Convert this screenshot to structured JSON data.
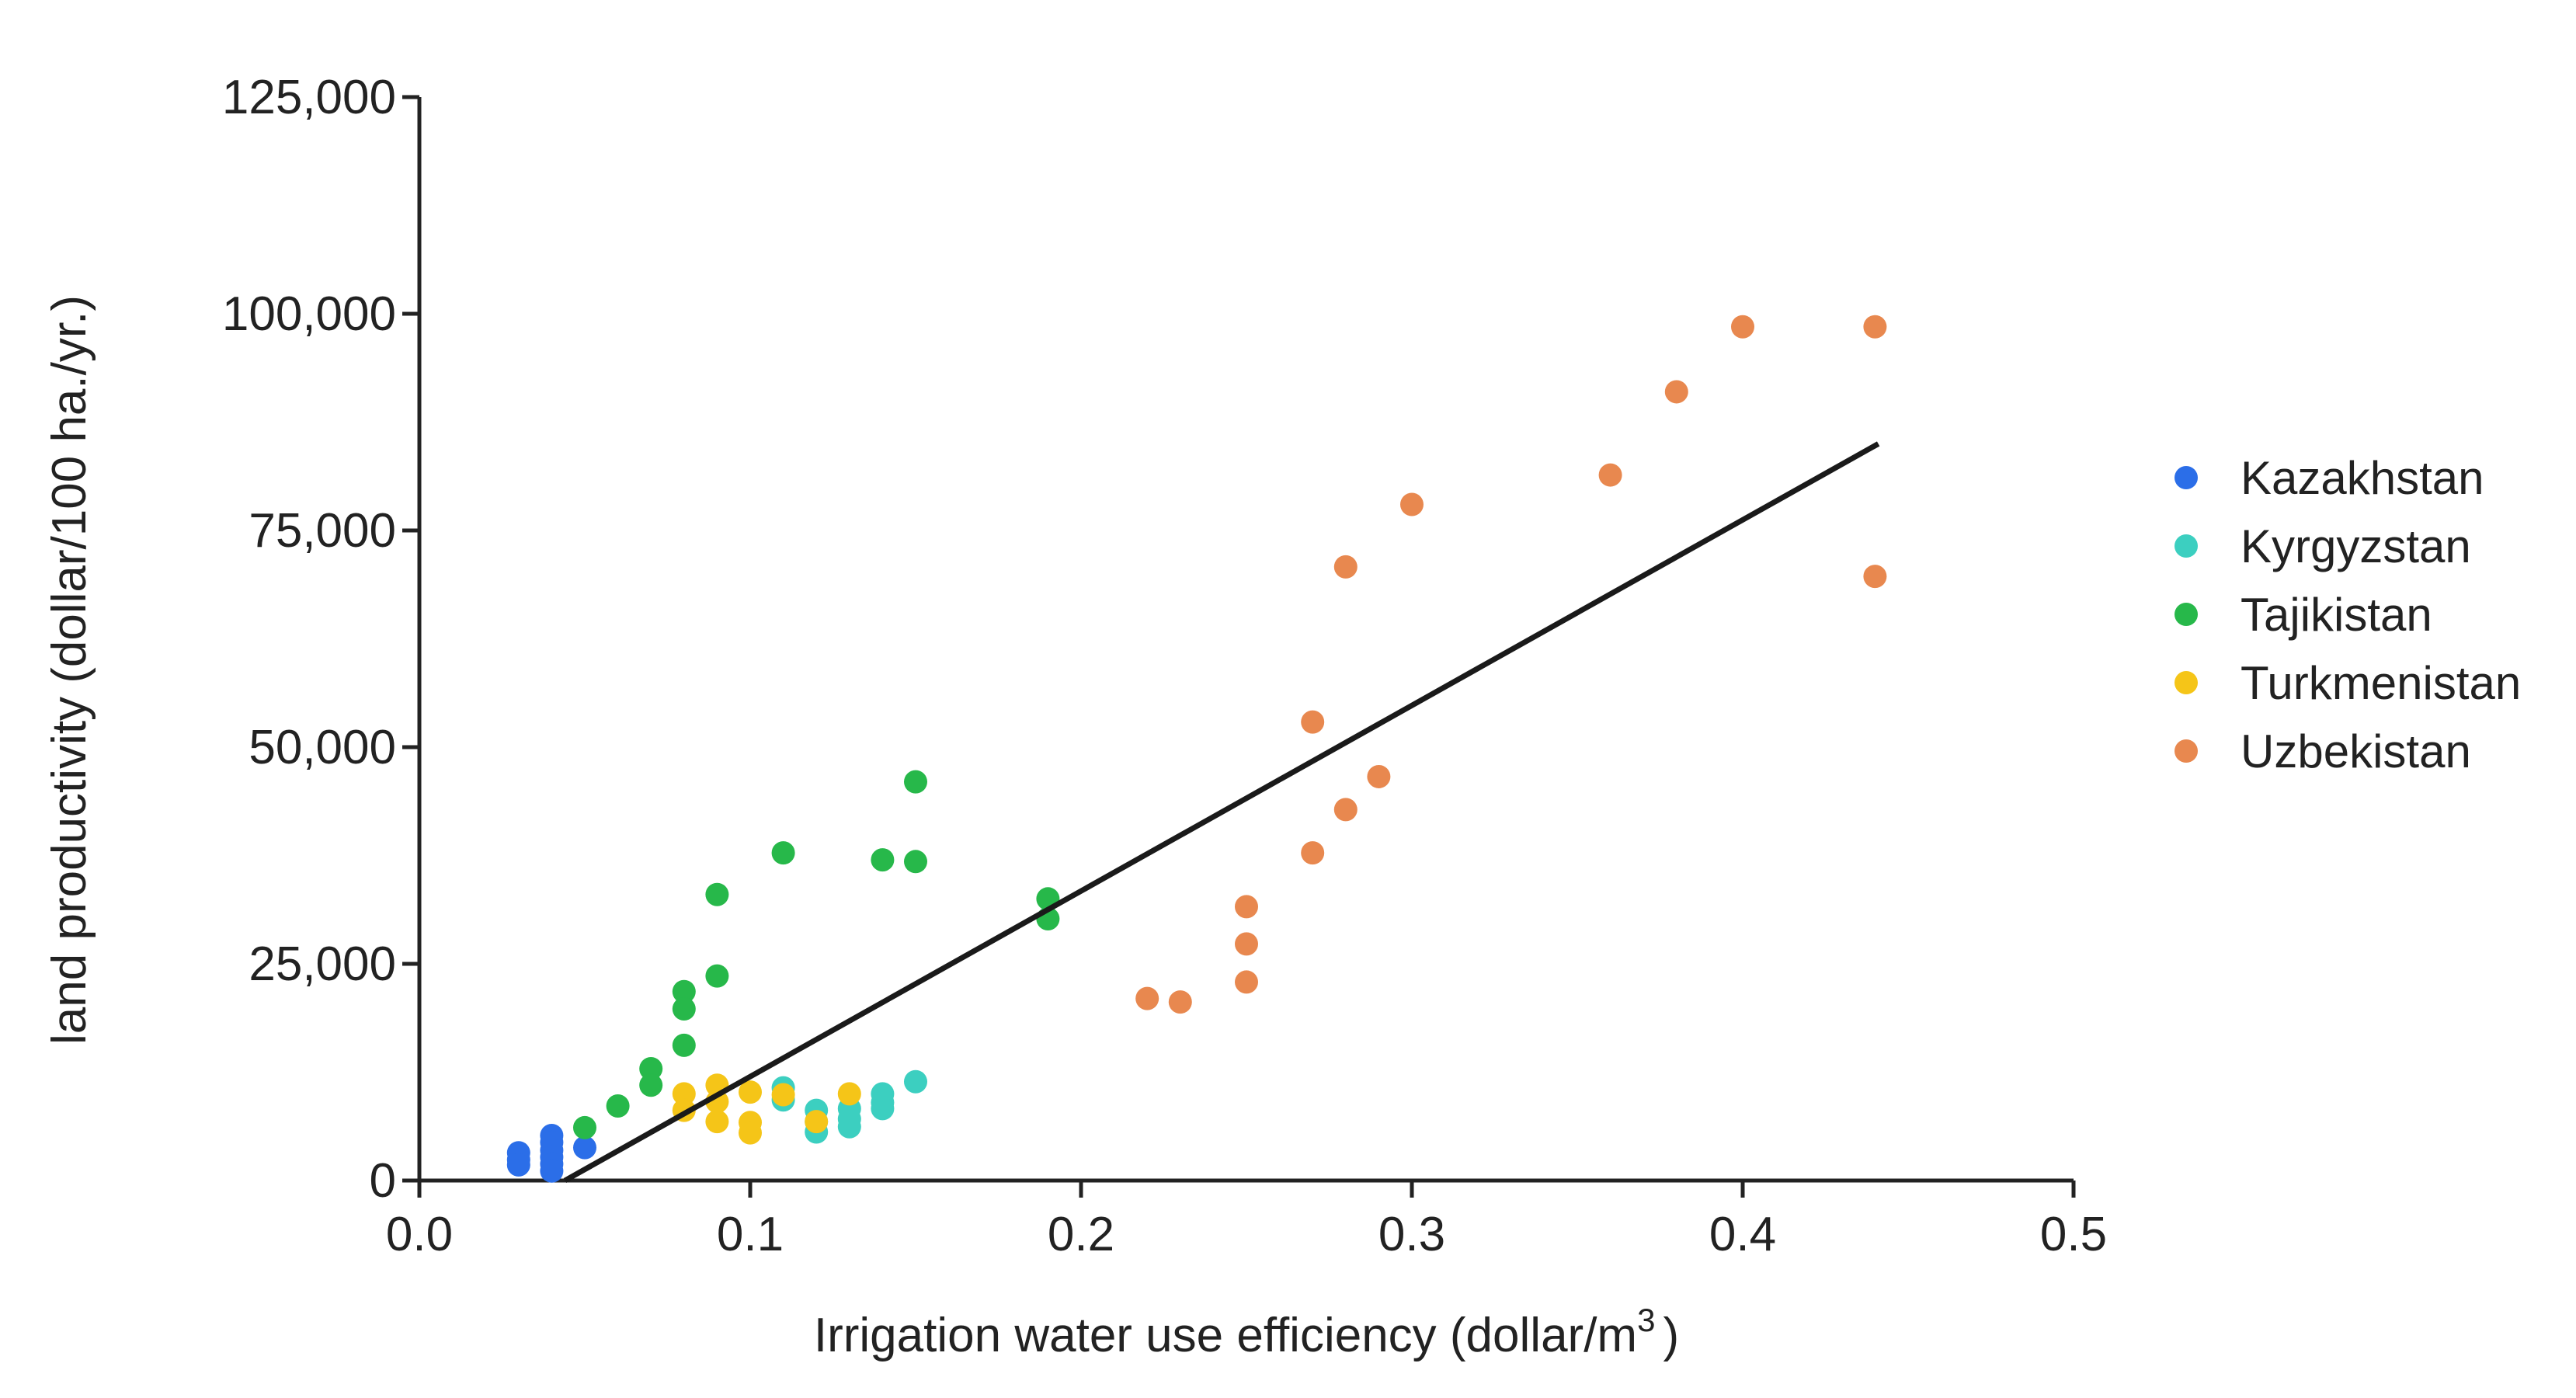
{
  "chart_data": {
    "type": "scatter",
    "title": "",
    "xlabel": "Irrigation water use efficiency (dollar/m",
    "xlabel_sup": "3",
    "xlabel_close": ")",
    "ylabel": "land productivity (dollar/100 ha./yr.)",
    "xlim": [
      0.0,
      0.5
    ],
    "ylim": [
      0,
      125000
    ],
    "grid": false,
    "legend_position": "right",
    "x_ticks": [
      {
        "value": 0.0,
        "label": "0.0"
      },
      {
        "value": 0.1,
        "label": "0.1"
      },
      {
        "value": 0.2,
        "label": "0.2"
      },
      {
        "value": 0.3,
        "label": "0.3"
      },
      {
        "value": 0.4,
        "label": "0.4"
      },
      {
        "value": 0.5,
        "label": "0.5"
      }
    ],
    "y_ticks": [
      {
        "value": 0,
        "label": "0"
      },
      {
        "value": 25000,
        "label": "25,000"
      },
      {
        "value": 50000,
        "label": "50,000"
      },
      {
        "value": 75000,
        "label": "75,000"
      },
      {
        "value": 100000,
        "label": "100,000"
      },
      {
        "value": 125000,
        "label": "125,000"
      }
    ],
    "trendline": {
      "x": [
        0.044,
        0.441
      ],
      "y": [
        0,
        85000
      ],
      "color": "#1a1a1a"
    },
    "series": [
      {
        "name": "Kazakhstan",
        "color": "#2b6ee8",
        "points": [
          [
            0.03,
            3200
          ],
          [
            0.03,
            2400
          ],
          [
            0.03,
            1800
          ],
          [
            0.04,
            5200
          ],
          [
            0.04,
            4400
          ],
          [
            0.04,
            3500
          ],
          [
            0.04,
            2700
          ],
          [
            0.04,
            1900
          ],
          [
            0.04,
            1100
          ],
          [
            0.05,
            3800
          ]
        ]
      },
      {
        "name": "Kyrgyzstan",
        "color": "#3ccfc0",
        "points": [
          [
            0.11,
            10700
          ],
          [
            0.11,
            9300
          ],
          [
            0.12,
            8100
          ],
          [
            0.12,
            6800
          ],
          [
            0.12,
            5600
          ],
          [
            0.13,
            8300
          ],
          [
            0.13,
            7100
          ],
          [
            0.13,
            6200
          ],
          [
            0.14,
            10000
          ],
          [
            0.14,
            9000
          ],
          [
            0.14,
            8300
          ],
          [
            0.15,
            11400
          ]
        ]
      },
      {
        "name": "Tajikistan",
        "color": "#27b84a",
        "points": [
          [
            0.05,
            6100
          ],
          [
            0.06,
            8600
          ],
          [
            0.07,
            12900
          ],
          [
            0.07,
            11000
          ],
          [
            0.08,
            21800
          ],
          [
            0.08,
            19800
          ],
          [
            0.08,
            15600
          ],
          [
            0.09,
            33000
          ],
          [
            0.09,
            23600
          ],
          [
            0.11,
            37800
          ],
          [
            0.14,
            37000
          ],
          [
            0.15,
            46000
          ],
          [
            0.15,
            36800
          ],
          [
            0.19,
            32500
          ],
          [
            0.19,
            30200
          ]
        ]
      },
      {
        "name": "Turkmenistan",
        "color": "#f5c518",
        "points": [
          [
            0.08,
            10000
          ],
          [
            0.08,
            8100
          ],
          [
            0.09,
            11000
          ],
          [
            0.09,
            9100
          ],
          [
            0.09,
            6800
          ],
          [
            0.1,
            10200
          ],
          [
            0.1,
            6700
          ],
          [
            0.1,
            5500
          ],
          [
            0.11,
            9900
          ],
          [
            0.12,
            6800
          ],
          [
            0.13,
            10000
          ]
        ]
      },
      {
        "name": "Uzbekistan",
        "color": "#e8884f",
        "points": [
          [
            0.22,
            21000
          ],
          [
            0.23,
            20600
          ],
          [
            0.25,
            31600
          ],
          [
            0.25,
            27300
          ],
          [
            0.25,
            22900
          ],
          [
            0.27,
            52900
          ],
          [
            0.27,
            37800
          ],
          [
            0.28,
            70800
          ],
          [
            0.28,
            42800
          ],
          [
            0.29,
            46600
          ],
          [
            0.3,
            78000
          ],
          [
            0.36,
            81400
          ],
          [
            0.38,
            91000
          ],
          [
            0.4,
            98500
          ],
          [
            0.44,
            98500
          ],
          [
            0.44,
            69700
          ]
        ]
      }
    ]
  }
}
